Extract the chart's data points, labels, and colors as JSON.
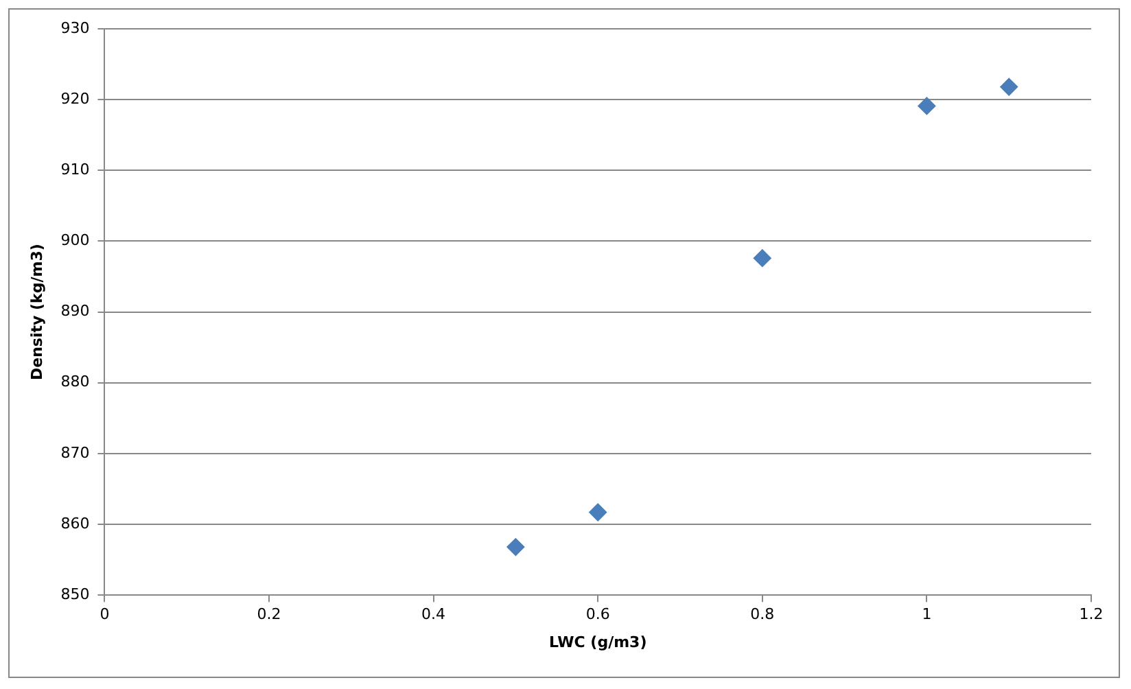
{
  "chart_data": {
    "type": "scatter",
    "xlabel": "LWC (g/m3)",
    "ylabel": "Density (kg/m3)",
    "x": [
      0.5,
      0.6,
      0.8,
      1,
      1.1
    ],
    "series": [
      {
        "color": "#4a7ebb",
        "values": [
          856.8,
          861.7,
          897.6,
          919.1,
          921.8
        ]
      }
    ],
    "xlim": [
      0,
      1.2
    ],
    "xticks": [
      0,
      0.2,
      0.4,
      0.6,
      0.8,
      1,
      1.2
    ],
    "ylim": [
      850,
      930
    ],
    "yticks": [
      850,
      860,
      870,
      880,
      890,
      900,
      910,
      920,
      930
    ],
    "grid": "y",
    "legend": false,
    "marker": "diamond"
  }
}
